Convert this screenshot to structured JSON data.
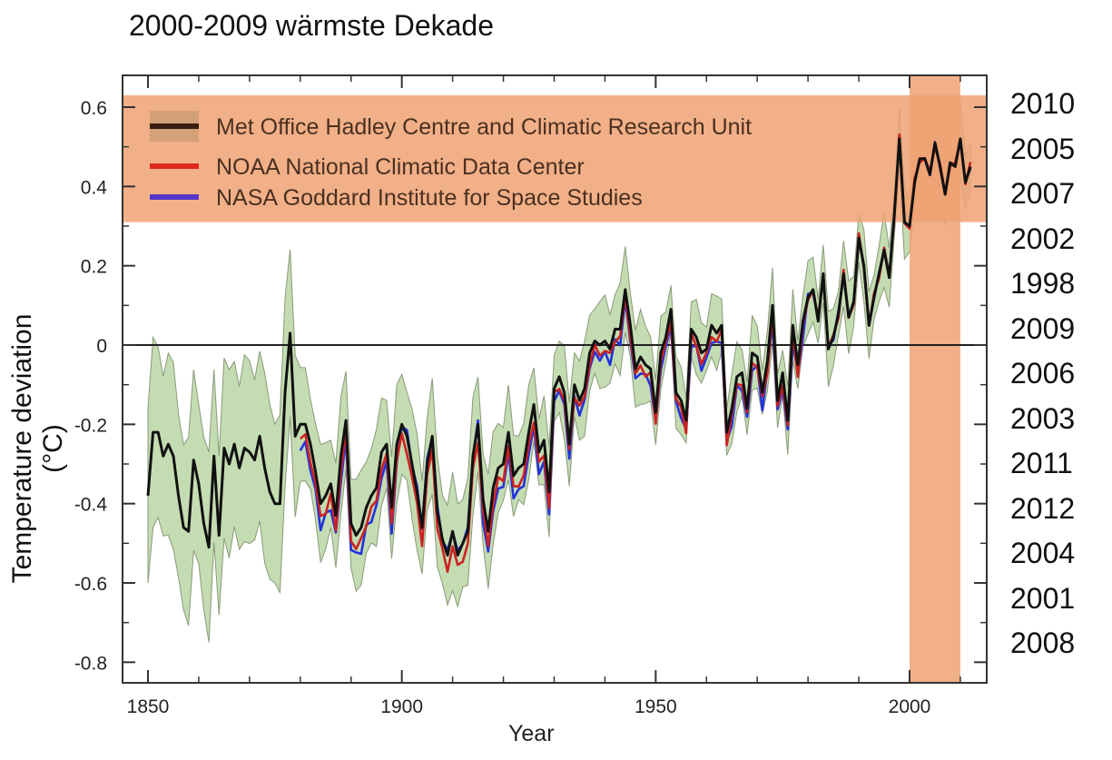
{
  "colors": {
    "hadley": "#111111",
    "noaa": "#cc2222",
    "nasa": "#2233dd",
    "band_fill": "#c4dcb2",
    "band_edge": "#8a9a7a",
    "highlight": "#f0a273",
    "legend_hadley": "#3a2010",
    "legend_noaa": "#dd2a1a",
    "legend_nasa": "#5535c8"
  },
  "chart_data": {
    "type": "line",
    "title": "2000-2009 wärmste Dekade",
    "xlabel": "Year",
    "ylabel": "Temperature deviation (°C)",
    "xlim": [
      1845,
      2015
    ],
    "ylim": [
      -0.85,
      0.7
    ],
    "xticks": [
      1850,
      1900,
      1950,
      2000
    ],
    "yticks": [
      0.6,
      0.4,
      0.2,
      0,
      -0.2,
      -0.4,
      -0.6,
      -0.8
    ],
    "ytick_labels": [
      "0.6",
      "0.4",
      "0.2",
      "0",
      "-0.2",
      "-0.4",
      "-0.6",
      "-0.8"
    ],
    "zero_line": true,
    "legend_position": "top-left",
    "highlight_band_y": [
      0.31,
      0.63
    ],
    "highlight_band_x": [
      2000,
      2010
    ],
    "series": [
      {
        "name": "Met Office Hadley Centre and Climatic Research Unit",
        "x": [
          1850,
          1851,
          1852,
          1853,
          1854,
          1855,
          1856,
          1857,
          1858,
          1859,
          1860,
          1861,
          1862,
          1863,
          1864,
          1865,
          1866,
          1867,
          1868,
          1869,
          1870,
          1871,
          1872,
          1873,
          1874,
          1875,
          1876,
          1877,
          1878,
          1879,
          1880,
          1881,
          1882,
          1883,
          1884,
          1885,
          1886,
          1887,
          1888,
          1889,
          1890,
          1891,
          1892,
          1893,
          1894,
          1895,
          1896,
          1897,
          1898,
          1899,
          1900,
          1901,
          1902,
          1903,
          1904,
          1905,
          1906,
          1907,
          1908,
          1909,
          1910,
          1911,
          1912,
          1913,
          1914,
          1915,
          1916,
          1917,
          1918,
          1919,
          1920,
          1921,
          1922,
          1923,
          1924,
          1925,
          1926,
          1927,
          1928,
          1929,
          1930,
          1931,
          1932,
          1933,
          1934,
          1935,
          1936,
          1937,
          1938,
          1939,
          1940,
          1941,
          1942,
          1943,
          1944,
          1945,
          1946,
          1947,
          1948,
          1949,
          1950,
          1951,
          1952,
          1953,
          1954,
          1955,
          1956,
          1957,
          1958,
          1959,
          1960,
          1961,
          1962,
          1963,
          1964,
          1965,
          1966,
          1967,
          1968,
          1969,
          1970,
          1971,
          1972,
          1973,
          1974,
          1975,
          1976,
          1977,
          1978,
          1979,
          1980,
          1981,
          1982,
          1983,
          1984,
          1985,
          1986,
          1987,
          1988,
          1989,
          1990,
          1991,
          1992,
          1993,
          1994,
          1995,
          1996,
          1997,
          1998,
          1999,
          2000,
          2001,
          2002,
          2003,
          2004,
          2005,
          2006,
          2007,
          2008,
          2009,
          2010,
          2011,
          2012
        ],
        "y": [
          -0.38,
          -0.22,
          -0.22,
          -0.28,
          -0.25,
          -0.28,
          -0.38,
          -0.46,
          -0.47,
          -0.29,
          -0.35,
          -0.45,
          -0.51,
          -0.28,
          -0.48,
          -0.26,
          -0.3,
          -0.25,
          -0.31,
          -0.26,
          -0.27,
          -0.29,
          -0.23,
          -0.31,
          -0.37,
          -0.4,
          -0.4,
          -0.12,
          0.03,
          -0.23,
          -0.2,
          -0.2,
          -0.25,
          -0.32,
          -0.4,
          -0.38,
          -0.35,
          -0.43,
          -0.28,
          -0.19,
          -0.45,
          -0.48,
          -0.46,
          -0.41,
          -0.38,
          -0.36,
          -0.27,
          -0.25,
          -0.41,
          -0.25,
          -0.2,
          -0.23,
          -0.3,
          -0.37,
          -0.46,
          -0.3,
          -0.23,
          -0.42,
          -0.49,
          -0.53,
          -0.47,
          -0.53,
          -0.5,
          -0.47,
          -0.28,
          -0.2,
          -0.39,
          -0.47,
          -0.36,
          -0.31,
          -0.3,
          -0.22,
          -0.33,
          -0.31,
          -0.3,
          -0.22,
          -0.15,
          -0.27,
          -0.24,
          -0.37,
          -0.11,
          -0.08,
          -0.12,
          -0.25,
          -0.1,
          -0.14,
          -0.11,
          -0.02,
          0.01,
          0.0,
          0.01,
          -0.01,
          0.04,
          0.04,
          0.14,
          0.05,
          -0.06,
          -0.03,
          -0.05,
          -0.06,
          -0.17,
          -0.02,
          0.02,
          0.09,
          -0.12,
          -0.14,
          -0.19,
          0.04,
          0.02,
          -0.02,
          -0.01,
          0.05,
          0.03,
          0.05,
          -0.22,
          -0.16,
          -0.08,
          -0.07,
          -0.16,
          -0.02,
          -0.03,
          -0.12,
          -0.04,
          0.1,
          -0.14,
          -0.07,
          -0.19,
          0.05,
          -0.05,
          0.06,
          0.12,
          0.14,
          0.06,
          0.18,
          -0.01,
          0.02,
          0.08,
          0.18,
          0.07,
          0.11,
          0.27,
          0.2,
          0.05,
          0.12,
          0.18,
          0.24,
          0.17,
          0.33,
          0.52,
          0.31,
          0.3,
          0.41,
          0.47,
          0.47,
          0.43,
          0.51,
          0.45,
          0.38,
          0.46,
          0.45,
          0.52,
          0.41,
          0.45
        ],
        "visible_from": 1850
      },
      {
        "name": "NOAA National Climatic Data Center",
        "visible_from": 1880,
        "offset_before_1930": -0.035
      },
      {
        "name": "NASA Goddard Institute for Space Studies",
        "visible_from": 1880,
        "offset_before_1930": -0.055
      }
    ]
  },
  "ranking": {
    "years": [
      "2010",
      "2005",
      "2007",
      "2002",
      "1998",
      "2009",
      "2006",
      "2003",
      "2011",
      "2012",
      "2004",
      "2001",
      "2008"
    ]
  }
}
